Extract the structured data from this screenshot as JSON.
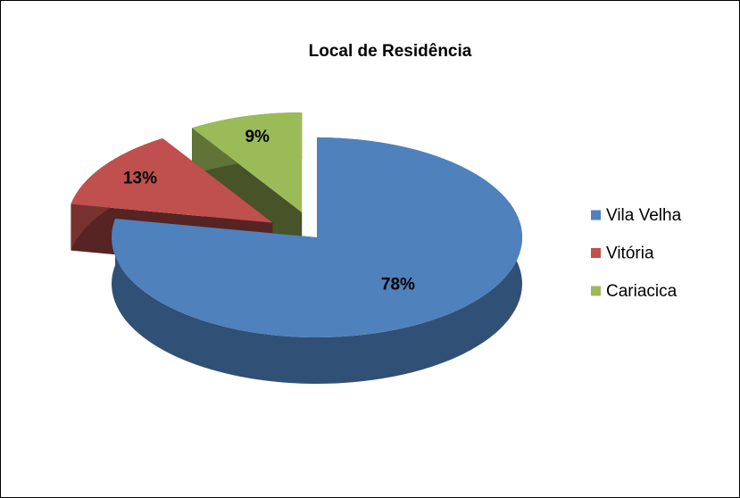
{
  "chart_data": {
    "type": "pie3d",
    "title": "Local de Residência",
    "categories": [
      "Vila Velha",
      "Vitória",
      "Cariacica"
    ],
    "values": [
      78,
      13,
      9
    ],
    "value_labels": [
      "78%",
      "13%",
      "9%"
    ],
    "colors": [
      "#4f81bd",
      "#c0504d",
      "#9bbb59"
    ],
    "legend": "right"
  }
}
